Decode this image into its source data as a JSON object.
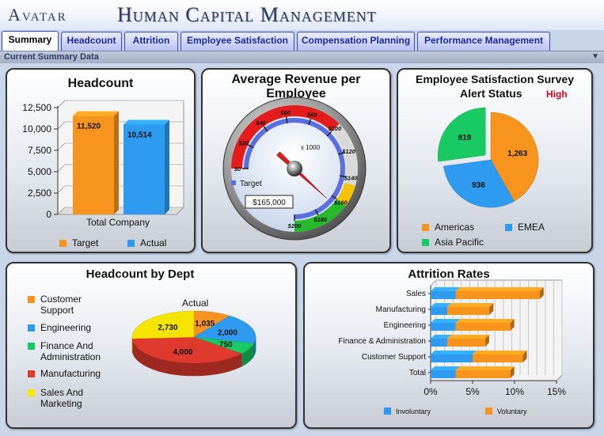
{
  "header": {
    "logo": "Avatar",
    "title": "Human Capital Management"
  },
  "tabs": [
    {
      "label": "Summary",
      "active": true
    },
    {
      "label": "Headcount",
      "active": false
    },
    {
      "label": "Attrition",
      "active": false
    },
    {
      "label": "Employee Satisfaction",
      "active": false
    },
    {
      "label": "Compensation Planning",
      "active": false
    },
    {
      "label": "Performance Management",
      "active": false
    }
  ],
  "section": {
    "title": "Current Summary Data",
    "collapse_icon": "triangle-down-icon"
  },
  "colors": {
    "orange": "#f7941d",
    "blue": "#2e9bf0",
    "green": "#19c964",
    "red": "#e03a2e",
    "yellow": "#f5e400"
  },
  "headcount": {
    "title": "Headcount",
    "legend": [
      "Target",
      "Actual"
    ],
    "chart_data": {
      "type": "bar",
      "categories": [
        "Total Company"
      ],
      "series": [
        {
          "name": "Target",
          "values": [
            11520
          ],
          "labels": [
            "11,520"
          ]
        },
        {
          "name": "Actual",
          "values": [
            10514
          ],
          "labels": [
            "10,514"
          ]
        }
      ],
      "ylim": [
        0,
        12500
      ],
      "yticks": [
        "0",
        "2,500",
        "5,000",
        "7,500",
        "10,000",
        "12,500"
      ],
      "ytick_values": [
        0,
        2500,
        5000,
        7500,
        10000,
        12500
      ]
    }
  },
  "revenue": {
    "title": "Average Revenue per Employee",
    "unit": "x 1000",
    "target_label": "Target",
    "value_label": "$165,000",
    "chart_data": {
      "type": "gauge",
      "min": 0,
      "max": 200,
      "value": 165,
      "ticks": [
        "$0",
        "$20",
        "$40",
        "$60",
        "$80",
        "$100",
        "$120",
        "$140",
        "$160",
        "$180",
        "$200"
      ],
      "tick_values": [
        0,
        20,
        40,
        60,
        80,
        100,
        120,
        140,
        160,
        180,
        200
      ]
    }
  },
  "satisfaction": {
    "title_line1": "Employee Satisfaction Survey",
    "title_line2": "Alert Status",
    "status": "High",
    "chart_data": {
      "type": "pie",
      "categories": [
        "Americas",
        "EMEA",
        "Asia Pacific"
      ],
      "values": [
        1263,
        936,
        819
      ],
      "labels": [
        "1,263",
        "936",
        "819"
      ]
    }
  },
  "dept": {
    "title": "Headcount by Dept",
    "pie_label": "Actual",
    "legend": [
      "Customer Support",
      "Engineering",
      "Finance And Administration",
      "Manufacturing",
      "Sales And Marketing"
    ],
    "chart_data": {
      "type": "pie",
      "categories": [
        "Customer Support",
        "Engineering",
        "Finance And Administration",
        "Manufacturing",
        "Sales And Marketing"
      ],
      "values": [
        1035,
        2000,
        750,
        4000,
        2730
      ],
      "labels": [
        "1,035",
        "2,000",
        "750",
        "4,000",
        "2,730"
      ]
    }
  },
  "attrition": {
    "title": "Attrition Rates",
    "legend": [
      "Involuntary",
      "Voluntary"
    ],
    "chart_data": {
      "type": "bar",
      "orientation": "horizontal",
      "stacked": true,
      "categories": [
        "Sales",
        "Manufacturing",
        "Engineering",
        "Finance & Administration",
        "Customer Support",
        "Total"
      ],
      "series": [
        {
          "name": "Involuntary",
          "values": [
            3,
            2,
            3,
            2,
            5,
            3
          ]
        },
        {
          "name": "Voluntary",
          "values": [
            10,
            5,
            6.5,
            4.5,
            6,
            6.5
          ]
        }
      ],
      "xlim": [
        0,
        15
      ],
      "xticks": [
        "0%",
        "5%",
        "10%",
        "15%"
      ],
      "xtick_values": [
        0,
        5,
        10,
        15
      ]
    }
  }
}
